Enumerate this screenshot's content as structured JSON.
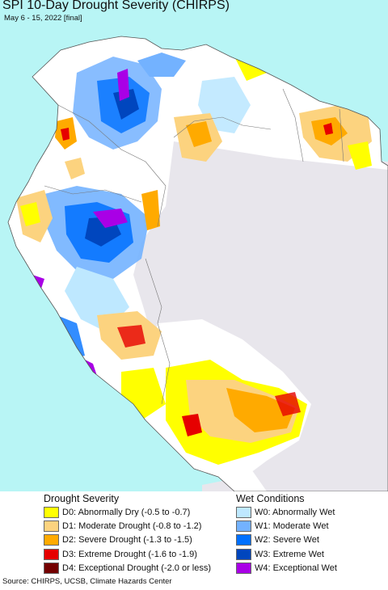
{
  "title": "SPI 10-Day Drought Severity (CHIRPS)",
  "subtitle": "May 6 - 15, 2022 [final]",
  "legend": {
    "drought_heading": "Drought Severity",
    "wet_heading": "Wet Conditions",
    "drought_items": [
      {
        "label": "D0: Abnormally Dry (-0.5 to -0.7)",
        "color": "#ffff00"
      },
      {
        "label": "D1: Moderate Drought (-0.8 to -1.2)",
        "color": "#fcd37f"
      },
      {
        "label": "D2: Severe Drought (-1.3 to -1.5)",
        "color": "#ffaa00"
      },
      {
        "label": "D3: Extreme Drought (-1.6 to -1.9)",
        "color": "#e60000"
      },
      {
        "label": "D4: Exceptional Drought (-2.0 or less)",
        "color": "#730000"
      }
    ],
    "wet_items": [
      {
        "label": "W0: Abnormally Wet",
        "color": "#bee8ff"
      },
      {
        "label": "W1: Moderate Wet",
        "color": "#73b2ff"
      },
      {
        "label": "W2: Severe Wet",
        "color": "#0070ff"
      },
      {
        "label": "W3: Extreme Wet",
        "color": "#0046be"
      },
      {
        "label": "W4: Exceptional Wet",
        "color": "#a900e6"
      }
    ]
  },
  "map_colors": {
    "ocean": "#b8f5f5",
    "neutral_land": "#ffffff",
    "outside_land": "#e8e6ec"
  },
  "source": "Source: CHIRPS, UCSB, Climate Hazards Center"
}
